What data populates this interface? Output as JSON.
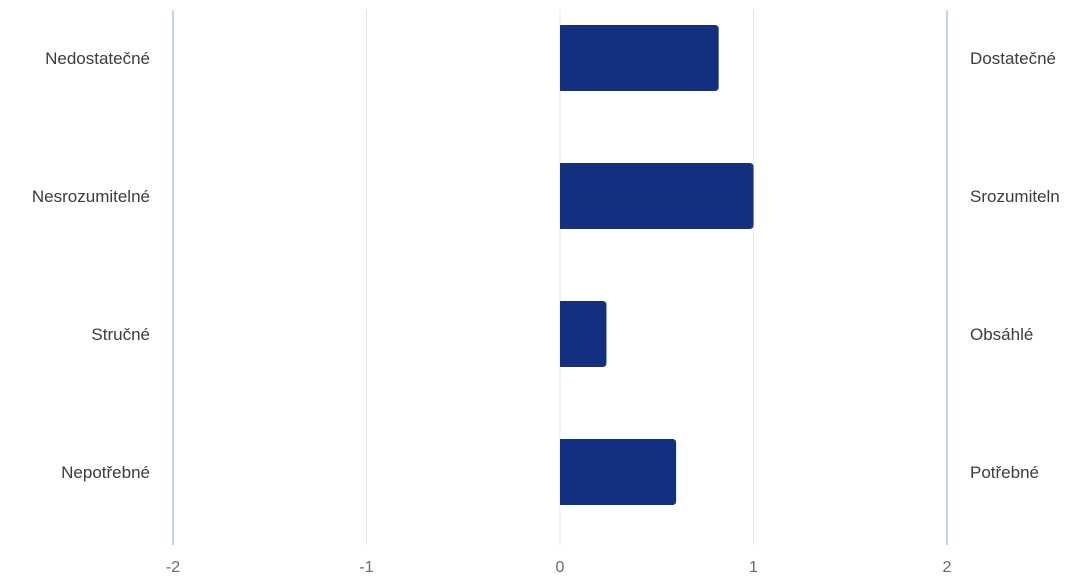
{
  "chart_data": {
    "type": "bar",
    "orientation": "horizontal",
    "categories": [
      "Nedostatečné",
      "Nesrozumitelné",
      "Stručné",
      "Nepotřebné"
    ],
    "right_labels": [
      "Dostatečné",
      "Srozumiteln",
      "Obsáhlé",
      "Potřebné"
    ],
    "values": [
      0.82,
      1.0,
      0.24,
      0.6
    ],
    "xlim": [
      -2,
      2
    ],
    "xticks": [
      -2,
      -1,
      0,
      1,
      2
    ],
    "xtick_labels": [
      "-2",
      "-1",
      "0",
      "1",
      "2"
    ],
    "grid": true,
    "colors": {
      "bar": "#12307f",
      "grid": "#e2e6ec",
      "outer_axis": "#c9d6e4"
    }
  }
}
